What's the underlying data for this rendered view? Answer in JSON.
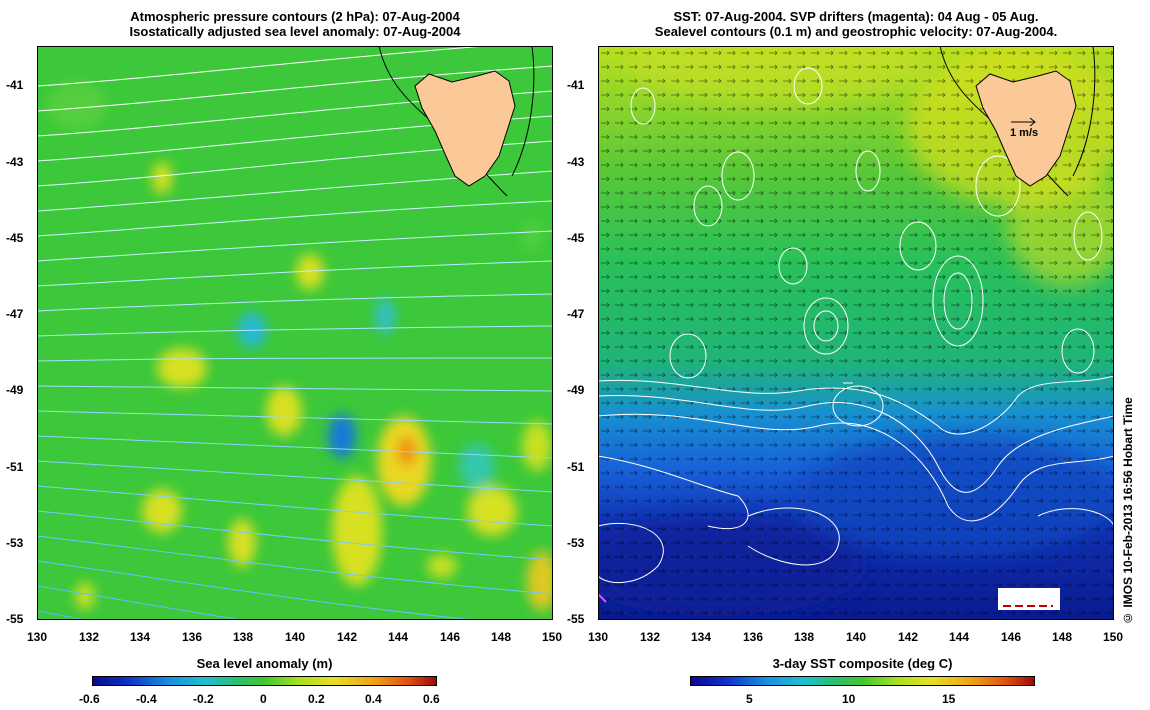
{
  "left_panel": {
    "title_line1": "Atmospheric pressure contours (2 hPa): 07-Aug-2004",
    "title_line2": "Isostatically adjusted sea level anomaly: 07-Aug-2004",
    "colorbar_title": "Sea level anomaly (m)",
    "colorbar_ticks": [
      "-0.6",
      "-0.4",
      "-0.2",
      "0",
      "0.2",
      "0.4",
      "0.6"
    ],
    "colors": {
      "ocean": "#3cc83a",
      "contour_low": "#7fe0ff",
      "contour_high": "#ffffff"
    }
  },
  "right_panel": {
    "title_line1": "SST: 07-Aug-2004. SVP drifters (magenta): 04 Aug - 05 Aug.",
    "title_line2": "Sealevel contours (0.1 m) and geostrophic velocity: 07-Aug-2004.",
    "colorbar_title": "3-day SST composite (deg C)",
    "colorbar_ticks": [
      "5",
      "10",
      "15"
    ],
    "velocity_scale_label": "1 m/s",
    "colors": {
      "warm": "#a8e020",
      "mid": "#28c060",
      "cold": "#1858d8",
      "coldest": "#0a1a90",
      "land": "#fbc897"
    }
  },
  "axes": {
    "lon_labels": [
      "130",
      "132",
      "134",
      "136",
      "138",
      "140",
      "142",
      "144",
      "146",
      "148",
      "150"
    ],
    "lat_labels": [
      "-41",
      "-43",
      "-45",
      "-47",
      "-49",
      "-51",
      "-53",
      "-55"
    ],
    "lon_range": [
      130,
      150
    ],
    "lat_range": [
      -55,
      -40
    ]
  },
  "credit": "© IMOS 10-Feb-2013 16:56 Hobart Time"
}
